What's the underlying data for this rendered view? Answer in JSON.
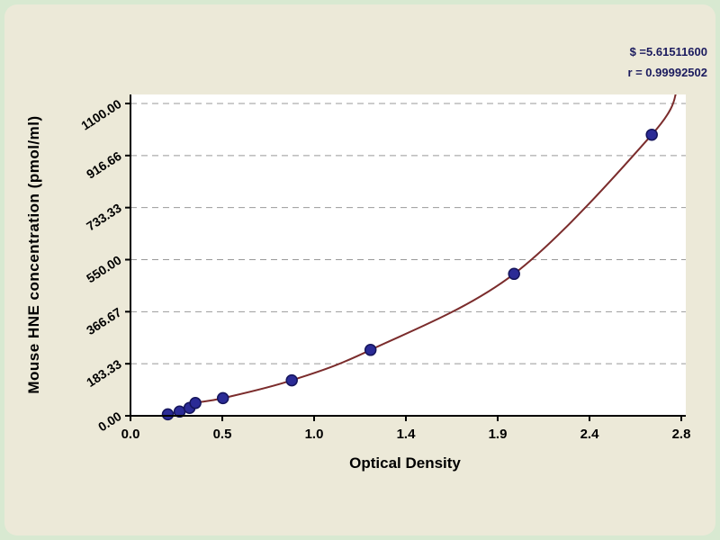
{
  "chart_data": {
    "type": "scatter",
    "title": "",
    "xlabel": "Optical Density",
    "ylabel": "Mouse HNE concentration (pmol/ml)",
    "xlim": [
      0,
      2.8
    ],
    "ylim": [
      0,
      1100
    ],
    "x_ticks": [
      0,
      0.4667,
      0.9333,
      1.4,
      1.8667,
      2.3333,
      2.8
    ],
    "x_tick_labels": [
      "0.0",
      "0.5",
      "1.0",
      "1.4",
      "1.9",
      "2.4",
      "2.8"
    ],
    "y_ticks": [
      0,
      183.33,
      366.67,
      550,
      733.33,
      916.66,
      1100
    ],
    "y_tick_labels": [
      "0.00",
      "183.33",
      "366.67",
      "550.00",
      "733.33",
      "916.66",
      "1100.00"
    ],
    "grid": "horizontal-dashed",
    "legend": "none",
    "points": [
      [
        0.19,
        5
      ],
      [
        0.25,
        15
      ],
      [
        0.3,
        28
      ],
      [
        0.33,
        45
      ],
      [
        0.47,
        62
      ],
      [
        0.82,
        125
      ],
      [
        1.22,
        232
      ],
      [
        1.95,
        500
      ],
      [
        2.65,
        990
      ]
    ],
    "curve": [
      [
        0.17,
        1
      ],
      [
        0.19,
        5
      ],
      [
        0.25,
        15
      ],
      [
        0.3,
        28
      ],
      [
        0.33,
        45
      ],
      [
        0.47,
        62
      ],
      [
        0.82,
        125
      ],
      [
        1.22,
        232
      ],
      [
        1.95,
        500
      ],
      [
        2.65,
        990
      ],
      [
        2.78,
        1150
      ]
    ],
    "annotations": [
      "$ =5.61511600",
      "r = 0.99992502"
    ],
    "colors": {
      "curve": "#7b2c2c",
      "point_fill": "#2b2b96",
      "point_stroke": "#15155c",
      "grid": "#999999",
      "axis": "#000000",
      "plot_bg": "#ffffff",
      "panel_bg": "#ece9d8",
      "outer_bg": "#d8e9d1",
      "stats_text": "#1b1b5e"
    }
  }
}
